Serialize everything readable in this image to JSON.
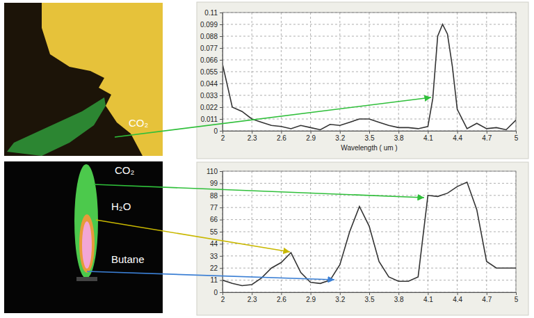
{
  "chart_data": [
    {
      "type": "line",
      "x": [
        2,
        2.1,
        2.2,
        2.3,
        2.4,
        2.5,
        2.6,
        2.7,
        2.8,
        2.9,
        3,
        3.1,
        3.2,
        3.3,
        3.4,
        3.5,
        3.6,
        3.7,
        3.8,
        3.9,
        4,
        4.1,
        4.15,
        4.2,
        4.25,
        4.3,
        4.35,
        4.4,
        4.5,
        4.6,
        4.7,
        4.8,
        4.9,
        5
      ],
      "series": [
        {
          "color": "#333333",
          "values": [
            0.062,
            0.022,
            0.018,
            0.011,
            0.008,
            0.005,
            0.004,
            0.002,
            0.005,
            0.003,
            0.001,
            0.006,
            0.005,
            0.008,
            0.011,
            0.011,
            0.008,
            0.005,
            0.003,
            0.003,
            0.002,
            0.004,
            0.03,
            0.088,
            0.099,
            0.09,
            0.06,
            0.02,
            0.002,
            0.007,
            0.002,
            0.003,
            0.001,
            0.01
          ]
        }
      ],
      "xlim": [
        2,
        5
      ],
      "ylim": [
        0,
        0.11
      ],
      "xticks": [
        2,
        2.3,
        2.6,
        2.9,
        3.2,
        3.5,
        3.8,
        4.1,
        4.4,
        4.7,
        5
      ],
      "yticks": [
        0,
        0.011,
        0.022,
        0.033,
        0.044,
        0.055,
        0.066,
        0.077,
        0.088,
        0.099,
        0.11
      ],
      "x_label": "Wavelength ( um )",
      "grid": true,
      "annotations": [
        "CO₂"
      ]
    },
    {
      "type": "line",
      "x": [
        2,
        2.1,
        2.2,
        2.3,
        2.4,
        2.5,
        2.6,
        2.7,
        2.8,
        2.9,
        3,
        3.1,
        3.2,
        3.3,
        3.4,
        3.5,
        3.6,
        3.7,
        3.8,
        3.9,
        4,
        4.1,
        4.2,
        4.3,
        4.4,
        4.5,
        4.6,
        4.7,
        4.8,
        4.9,
        5
      ],
      "series": [
        {
          "color": "#333333",
          "values": [
            11,
            8,
            6,
            7,
            13,
            22,
            27,
            36,
            18,
            9,
            8,
            11,
            25,
            55,
            78,
            60,
            28,
            14,
            10,
            10,
            14,
            88,
            87,
            90,
            96,
            100,
            75,
            28,
            22,
            22,
            22
          ]
        }
      ],
      "xlim": [
        2,
        5
      ],
      "ylim": [
        0,
        110
      ],
      "xticks": [
        2,
        2.3,
        2.6,
        2.9,
        3.2,
        3.5,
        3.8,
        4.1,
        4.4,
        4.7,
        5
      ],
      "yticks": [
        0,
        11,
        22,
        33,
        44,
        55,
        66,
        77,
        88,
        99,
        110
      ],
      "grid": true,
      "annotations": [
        "CO₂",
        "H₂O",
        "Butane"
      ]
    }
  ]
}
